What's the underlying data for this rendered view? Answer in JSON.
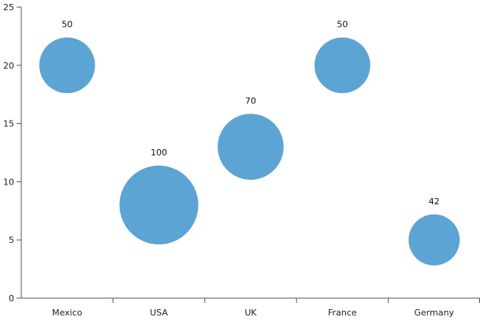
{
  "chart_data": {
    "type": "bubble",
    "categories": [
      "Mexico",
      "USA",
      "UK",
      "France",
      "Germany"
    ],
    "series": [
      {
        "points": [
          {
            "x": "Mexico",
            "y": 20,
            "size": 50
          },
          {
            "x": "USA",
            "y": 8,
            "size": 100
          },
          {
            "x": "UK",
            "y": 13,
            "size": 70
          },
          {
            "x": "France",
            "y": 20,
            "size": 50
          },
          {
            "x": "Germany",
            "y": 5,
            "size": 42
          }
        ],
        "color": "#5BA4D4"
      }
    ],
    "data_labels": [
      "50",
      "100",
      "70",
      "50",
      "42"
    ],
    "y_ticks": [
      "0",
      "5",
      "10",
      "15",
      "20",
      "25"
    ],
    "ylim": [
      0,
      25
    ],
    "grid": false,
    "legend": "none",
    "title": "",
    "xlabel": "",
    "ylabel": ""
  }
}
